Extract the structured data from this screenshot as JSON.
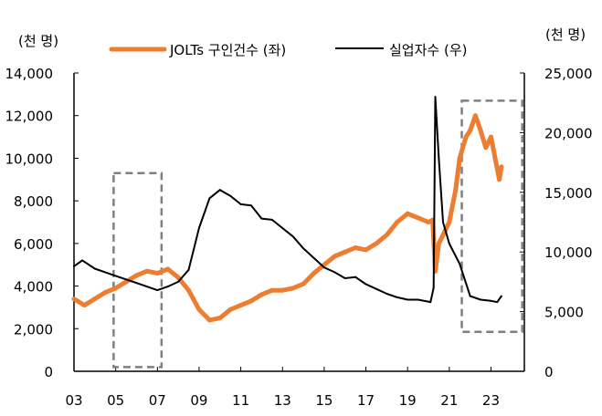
{
  "chart_data": {
    "type": "line",
    "left_unit": "(천 명)",
    "right_unit": "(천 명)",
    "xlim": [
      2003,
      2024.6
    ],
    "x_ticks": [
      {
        "v": 2003,
        "label": "03"
      },
      {
        "v": 2005,
        "label": "05"
      },
      {
        "v": 2007,
        "label": "07"
      },
      {
        "v": 2009,
        "label": "09"
      },
      {
        "v": 2011,
        "label": "11"
      },
      {
        "v": 2013,
        "label": "13"
      },
      {
        "v": 2015,
        "label": "15"
      },
      {
        "v": 2017,
        "label": "17"
      },
      {
        "v": 2019,
        "label": "19"
      },
      {
        "v": 2021,
        "label": "21"
      },
      {
        "v": 2023,
        "label": "23"
      }
    ],
    "y_left": {
      "lim": [
        0,
        14000
      ],
      "ticks": [
        0,
        2000,
        4000,
        6000,
        8000,
        10000,
        12000,
        14000
      ],
      "labels": [
        "0",
        "2,000",
        "4,000",
        "6,000",
        "8,000",
        "10,000",
        "12,000",
        "14,000"
      ]
    },
    "y_right": {
      "lim": [
        0,
        25000
      ],
      "ticks": [
        0,
        5000,
        10000,
        15000,
        20000,
        25000
      ],
      "labels": [
        "0",
        "5,000",
        "10,000",
        "15,000",
        "20,000",
        "25,000"
      ]
    },
    "legend_position": "top",
    "grid": false,
    "series": [
      {
        "name": "JOLTs 구인건수 (좌)",
        "axis": "left",
        "color": "#ED7D31",
        "x": [
          2003,
          2003.5,
          2004,
          2004.5,
          2005,
          2005.5,
          2006,
          2006.5,
          2007,
          2007.5,
          2008,
          2008.5,
          2009,
          2009.5,
          2010,
          2010.5,
          2011,
          2011.5,
          2012,
          2012.5,
          2013,
          2013.5,
          2014,
          2014.5,
          2015,
          2015.5,
          2016,
          2016.5,
          2017,
          2017.5,
          2018,
          2018.5,
          2019,
          2019.5,
          2020,
          2020.2,
          2020.33,
          2020.5,
          2020.8,
          2021,
          2021.3,
          2021.5,
          2021.8,
          2022,
          2022.25,
          2022.5,
          2022.75,
          2023,
          2023.2,
          2023.4,
          2023.5
        ],
        "y": [
          3400,
          3100,
          3400,
          3700,
          3900,
          4200,
          4500,
          4700,
          4600,
          4800,
          4400,
          3800,
          2900,
          2400,
          2500,
          2900,
          3100,
          3300,
          3600,
          3800,
          3800,
          3900,
          4100,
          4600,
          5000,
          5400,
          5600,
          5800,
          5700,
          6000,
          6400,
          7000,
          7400,
          7200,
          7000,
          7100,
          4700,
          6000,
          6600,
          7000,
          8500,
          10000,
          11000,
          11300,
          12000,
          11300,
          10500,
          11000,
          10000,
          9000,
          9600
        ]
      },
      {
        "name": "실업자수 (우)",
        "axis": "right",
        "color": "#000000",
        "x": [
          2003,
          2003.4,
          2004,
          2005,
          2006,
          2007,
          2007.5,
          2008,
          2008.5,
          2009,
          2009.5,
          2010,
          2010.5,
          2011,
          2011.5,
          2012,
          2012.5,
          2013,
          2013.5,
          2014,
          2014.5,
          2015,
          2015.5,
          2016,
          2016.5,
          2017,
          2017.5,
          2018,
          2018.5,
          2019,
          2019.5,
          2020.1,
          2020.25,
          2020.33,
          2020.5,
          2020.7,
          2021,
          2021.5,
          2022,
          2022.5,
          2023,
          2023.3,
          2023.5
        ],
        "y": [
          8800,
          9300,
          8600,
          8000,
          7400,
          6800,
          7100,
          7500,
          8500,
          12000,
          14500,
          15200,
          14700,
          14000,
          13900,
          12800,
          12700,
          12000,
          11300,
          10300,
          9500,
          8700,
          8300,
          7800,
          7900,
          7300,
          6900,
          6500,
          6200,
          6000,
          6000,
          5800,
          7000,
          23000,
          17800,
          12500,
          10700,
          9000,
          6300,
          6000,
          5900,
          5800,
          6300
        ]
      }
    ],
    "annotations": [
      {
        "type": "dashed-box",
        "color": "#7F7F7F",
        "x": [
          2004.9,
          2007.2
        ],
        "y_left": [
          200,
          9300
        ]
      },
      {
        "type": "dashed-box",
        "color": "#7F7F7F",
        "x": [
          2021.6,
          2024.5
        ],
        "y_left": [
          1850,
          12700
        ]
      }
    ]
  }
}
